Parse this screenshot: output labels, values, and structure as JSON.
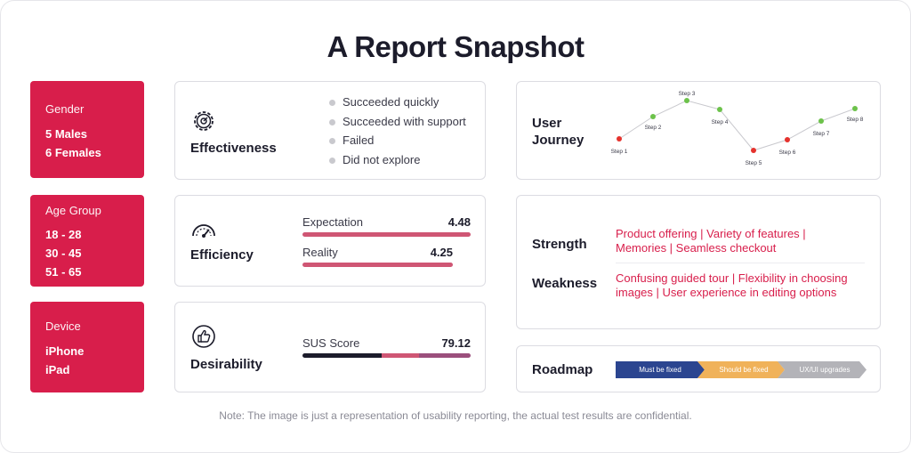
{
  "title": "A Report Snapshot",
  "demographics": {
    "gender": {
      "label": "Gender",
      "values": [
        "5 Males",
        "6 Females"
      ]
    },
    "age_group": {
      "label": "Age Group",
      "values": [
        "18 - 28",
        "30 - 45",
        "51 - 65"
      ]
    },
    "device": {
      "label": "Device",
      "values": [
        "iPhone",
        "iPad"
      ]
    }
  },
  "effectiveness": {
    "title": "Effectiveness",
    "icon": "gear-icon",
    "legend": [
      "Succeeded quickly",
      "Succeeded with support",
      "Failed",
      "Did not explore"
    ]
  },
  "efficiency": {
    "title": "Efficiency",
    "icon": "speedometer-icon",
    "expectation": {
      "label": "Expectation",
      "value": "4.48"
    },
    "reality": {
      "label": "Reality",
      "value": "4.25"
    }
  },
  "desirability": {
    "title": "Desirability",
    "icon": "thumbs-up-icon",
    "sus": {
      "label": "SUS Score",
      "value": "79.12"
    }
  },
  "user_journey": {
    "title_line1": "User",
    "title_line2": "Journey",
    "steps": [
      {
        "label": "Step 1",
        "status": "red"
      },
      {
        "label": "Step 2",
        "status": "green"
      },
      {
        "label": "Step 3",
        "status": "green"
      },
      {
        "label": "Step 4",
        "status": "green"
      },
      {
        "label": "Step 5",
        "status": "red"
      },
      {
        "label": "Step 6",
        "status": "red"
      },
      {
        "label": "Step 7",
        "status": "green"
      },
      {
        "label": "Step 8",
        "status": "green"
      }
    ]
  },
  "strength": {
    "label": "Strength",
    "line1": "Product offering | Variety of features |",
    "line2": "Memories | Seamless checkout"
  },
  "weakness": {
    "label": "Weakness",
    "line1": "Confusing guided tour | Flexibility in choosing",
    "line2": "images | User experience in editing options"
  },
  "roadmap": {
    "label": "Roadmap",
    "stages": [
      "Must be fixed",
      "Should be fixed",
      "UX/UI upgrades"
    ]
  },
  "colors": {
    "accent": "#d81e4b",
    "bar": "#cf5674",
    "navy": "#2b4590",
    "amber": "#f0b25a",
    "gray": "#b3b3b8",
    "green": "#6cc24a",
    "red": "#e5322d"
  },
  "note": "Note: The image is just a representation of usability reporting, the actual test results are confidential."
}
